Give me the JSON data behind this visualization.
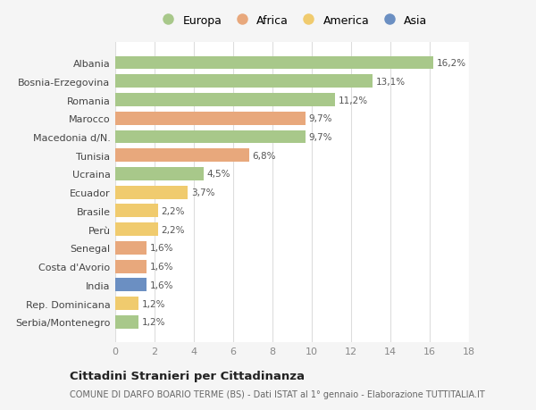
{
  "categories": [
    "Albania",
    "Bosnia-Erzegovina",
    "Romania",
    "Marocco",
    "Macedonia d/N.",
    "Tunisia",
    "Ucraina",
    "Ecuador",
    "Brasile",
    "Perù",
    "Senegal",
    "Costa d'Avorio",
    "India",
    "Rep. Dominicana",
    "Serbia/Montenegro"
  ],
  "values": [
    16.2,
    13.1,
    11.2,
    9.7,
    9.7,
    6.8,
    4.5,
    3.7,
    2.2,
    2.2,
    1.6,
    1.6,
    1.6,
    1.2,
    1.2
  ],
  "labels": [
    "16,2%",
    "13,1%",
    "11,2%",
    "9,7%",
    "9,7%",
    "6,8%",
    "4,5%",
    "3,7%",
    "2,2%",
    "2,2%",
    "1,6%",
    "1,6%",
    "1,6%",
    "1,2%",
    "1,2%"
  ],
  "continents": [
    "Europa",
    "Europa",
    "Europa",
    "Africa",
    "Europa",
    "Africa",
    "Europa",
    "America",
    "America",
    "America",
    "Africa",
    "Africa",
    "Asia",
    "America",
    "Europa"
  ],
  "colors": {
    "Europa": "#a8c88a",
    "Africa": "#e8a87c",
    "America": "#f0cb6e",
    "Asia": "#6b8fc2"
  },
  "legend_order": [
    "Europa",
    "Africa",
    "America",
    "Asia"
  ],
  "title": "Cittadini Stranieri per Cittadinanza",
  "subtitle": "COMUNE DI DARFO BOARIO TERME (BS) - Dati ISTAT al 1° gennaio - Elaborazione TUTTITALIA.IT",
  "xlim": [
    0,
    18
  ],
  "xticks": [
    0,
    2,
    4,
    6,
    8,
    10,
    12,
    14,
    16,
    18
  ],
  "background_color": "#f5f5f5",
  "bar_background": "#ffffff",
  "grid_color": "#dddddd"
}
